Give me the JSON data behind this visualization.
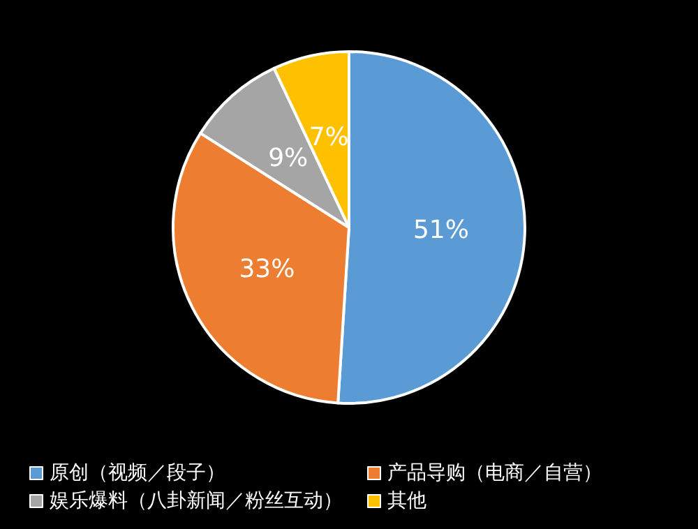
{
  "chart_data": {
    "type": "pie",
    "categories": [
      "原创（视频／段子）",
      "产品导购（电商／自营）",
      "娱乐爆料（八卦新闻／粉丝互动）",
      "其他"
    ],
    "values": [
      51,
      33,
      9,
      7
    ],
    "colors": [
      "#5b9bd5",
      "#ed7d31",
      "#a5a5a5",
      "#ffc000"
    ],
    "value_labels": [
      "51%",
      "33%",
      "9%",
      "7%"
    ],
    "legend": "bottom"
  }
}
